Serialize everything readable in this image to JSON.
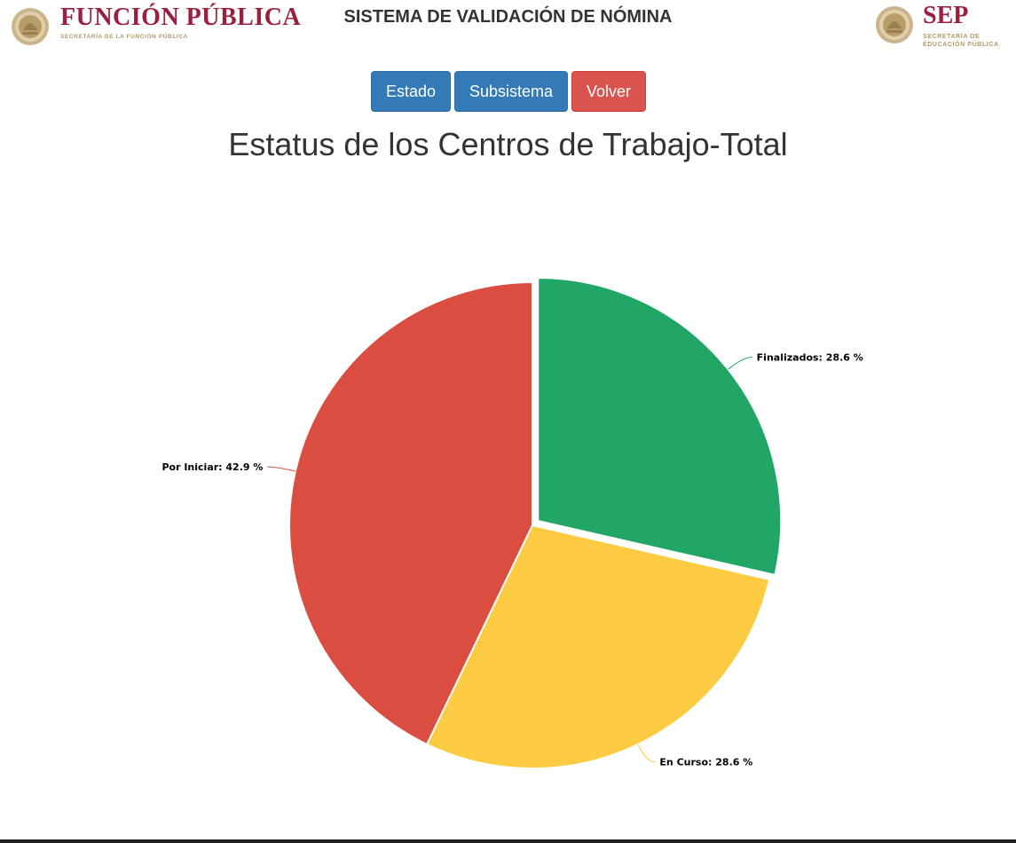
{
  "header": {
    "title": "SISTEMA DE VALIDACIÓN DE NÓMINA",
    "left_logo": {
      "name": "FUNCIÓN PÚBLICA",
      "subtitle": "SECRETARÍA DE LA FUNCIÓN PÚBLICA"
    },
    "right_logo": {
      "name": "SEP",
      "subtitle_line1": "SECRETARÍA DE",
      "subtitle_line2": "EDUCACIÓN PÚBLICA"
    }
  },
  "buttons": {
    "estado": "Estado",
    "subsistema": "Subsistema",
    "volver": "Volver"
  },
  "colors": {
    "primary": "#337ab7",
    "danger": "#d9534f",
    "brand_wine": "#9b1f3e",
    "brand_gold": "#b39a6a",
    "finalizados": "#21a665",
    "en_curso": "#fdcb41",
    "por_iniciar": "#db4d40"
  },
  "chart_data": {
    "type": "pie",
    "title": "Estatus de los Centros de Trabajo-Total",
    "slices": [
      {
        "label": "Finalizados",
        "value": 28.6,
        "display": "Finalizados: 28.6 %",
        "color": "#21a665",
        "exploded": true
      },
      {
        "label": "En Curso",
        "value": 28.6,
        "display": "En Curso: 28.6 %",
        "color": "#fdcb41",
        "exploded": false
      },
      {
        "label": "Por Iniciar",
        "value": 42.9,
        "display": "Por Iniciar: 42.9 %",
        "color": "#db4d40",
        "exploded": false
      }
    ],
    "start_angle": "12 o'clock, clockwise",
    "legend": "none"
  }
}
